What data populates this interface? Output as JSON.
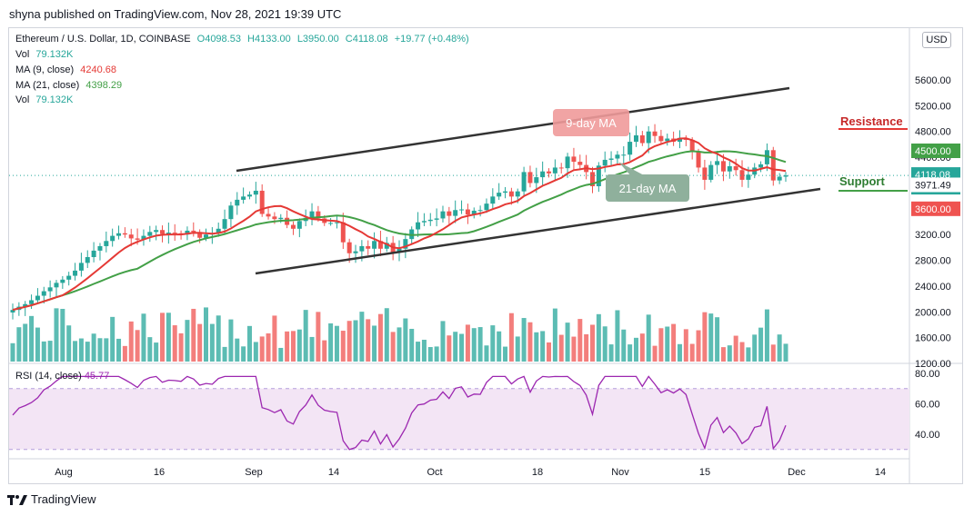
{
  "header": {
    "published": "shyna published on TradingView.com, Nov 28, 2021 19:39 UTC"
  },
  "legend": {
    "symbol": "Ethereum / U.S. Dollar, 1D, COINBASE",
    "open": "O4098.53",
    "high": "H4133.00",
    "low": "L3950.00",
    "close": "C4118.08",
    "change": "+19.77 (+0.48%)",
    "vol_label": "Vol",
    "vol_value": "79.132K",
    "ma9_label": "MA (9, close)",
    "ma9_value": "4240.68",
    "ma21_label": "MA (21, close)",
    "ma21_value": "4398.29",
    "vol2_label": "Vol",
    "vol2_value": "79.132K"
  },
  "rsi_legend": {
    "label": "RSI (14, close)",
    "value": "45.77"
  },
  "currency": "USD",
  "annotations": {
    "ma9_label": "9-day MA",
    "ma21_label": "21-day MA",
    "resistance": "Resistance",
    "support": "Support"
  },
  "footer": {
    "brand": "TradingView"
  },
  "colors": {
    "up": "#26a69a",
    "down": "#ef5350",
    "ma9": "#e53935",
    "ma21": "#43a047",
    "rsi": "#9c27b0",
    "rsi_band": "#f3e5f5",
    "channel": "#333333"
  },
  "chart_data": {
    "type": "candlestick",
    "symbol": "Ethereum / U.S. Dollar",
    "interval": "1D",
    "price_axis_ticks": [
      "5600.00",
      "5200.00",
      "4800.00",
      "4400.00",
      "4000.00",
      "3600.00",
      "3200.00",
      "2800.00",
      "2400.00",
      "2000.00",
      "1600.00",
      "1200.00"
    ],
    "price_labels": {
      "resistance": "4500.00",
      "last_high": "4134.30",
      "last_price": "4118.08",
      "countdown": "04:20:28",
      "last_low": "3971.49",
      "support": "3600.00"
    },
    "rsi_axis_ticks": [
      "80.00",
      "60.00",
      "40.00"
    ],
    "rsi_band": [
      30,
      70
    ],
    "x_ticks": [
      "Aug",
      "16",
      "Sep",
      "14",
      "Oct",
      "18",
      "Nov",
      "15",
      "Dec",
      "14"
    ],
    "ohlc_close_series": [
      2030,
      2080,
      2120,
      2180,
      2250,
      2320,
      2380,
      2450,
      2500,
      2560,
      2640,
      2760,
      2850,
      2950,
      3020,
      3100,
      3180,
      3220,
      3200,
      3140,
      3120,
      3180,
      3240,
      3270,
      3210,
      3230,
      3220,
      3200,
      3260,
      3240,
      3150,
      3200,
      3220,
      3290,
      3440,
      3650,
      3740,
      3790,
      3820,
      3880,
      3520,
      3480,
      3440,
      3460,
      3350,
      3290,
      3410,
      3460,
      3560,
      3450,
      3380,
      3380,
      3390,
      3080,
      2910,
      2940,
      3020,
      2980,
      3100,
      2980,
      3070,
      2920,
      2980,
      3130,
      3280,
      3390,
      3410,
      3430,
      3450,
      3560,
      3490,
      3580,
      3590,
      3510,
      3570,
      3580,
      3680,
      3790,
      3850,
      3870,
      3790,
      3870,
      4170,
      4000,
      4090,
      4180,
      4150,
      4240,
      4230,
      4410,
      4330,
      4280,
      4170,
      3950,
      4270,
      4360,
      4380,
      4440,
      4440,
      4640,
      4740,
      4620,
      4800,
      4730,
      4650,
      4690,
      4640,
      4700,
      4670,
      4480,
      4240,
      4050,
      4280,
      4340,
      4180,
      4260,
      4200,
      4050,
      4130,
      4240,
      4290,
      4510,
      4040,
      4098,
      4118
    ],
    "ma9": {
      "label": "MA (9, close)",
      "last": 4240.68
    },
    "ma21": {
      "label": "MA (21, close)",
      "last": 4398.29
    },
    "rsi": {
      "label": "RSI (14, close)",
      "last": 45.77
    }
  }
}
